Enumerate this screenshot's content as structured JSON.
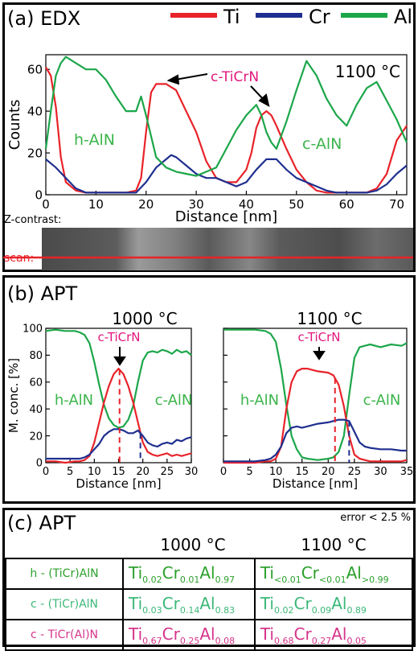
{
  "panel_a": {
    "title": "(a) EDX",
    "temperature": "1100 °C",
    "zcontrast_label": "Z-contrast:",
    "scan_label": "scan:",
    "annotation": "c-TiCrN",
    "region_left": "h-AlN",
    "region_right": "c-AlN"
  },
  "panel_b": {
    "title": "(b) APT",
    "left": {
      "temperature": "1000 °C",
      "annotation": "c-TiCrN",
      "region_left": "h-AlN",
      "region_right": "c-AlN"
    },
    "right": {
      "temperature": "1100 °C",
      "annotation": "c-TiCrN",
      "region_left": "h-AlN",
      "region_right": "c-AlN"
    }
  },
  "panel_c": {
    "title": "(c) APT",
    "error_note": "error < 2.5 %",
    "col_1000": "1000 °C",
    "col_1100": "1100 °C",
    "rows": [
      {
        "label": "h - (TiCr)AlN",
        "color": "#2ca02c",
        "c1000": [
          [
            "Ti",
            "0.02"
          ],
          [
            "Cr",
            "0.01"
          ],
          [
            "Al",
            "0.97"
          ]
        ],
        "c1100": [
          [
            "Ti",
            "<0.01"
          ],
          [
            "Cr",
            "<0.01"
          ],
          [
            "Al",
            ">0.99"
          ]
        ]
      },
      {
        "label": "c - (TiCr)AlN",
        "color": "#3cb878",
        "c1000": [
          [
            "Ti",
            "0.03"
          ],
          [
            "Cr",
            "0.14"
          ],
          [
            "Al",
            "0.83"
          ]
        ],
        "c1100": [
          [
            "Ti",
            "0.02"
          ],
          [
            "Cr",
            "0.09"
          ],
          [
            "Al",
            "0.89"
          ]
        ]
      },
      {
        "label": "c - TiCr(Al)N",
        "color": "#d6338a",
        "c1000": [
          [
            "Ti",
            "0.67"
          ],
          [
            "Cr",
            "0.25"
          ],
          [
            "Al",
            "0.08"
          ]
        ],
        "c1100": [
          [
            "Ti",
            "0.68"
          ],
          [
            "Cr",
            "0.27"
          ],
          [
            "Al",
            "0.05"
          ]
        ]
      }
    ]
  },
  "colors": {
    "Ti": "#e8232a",
    "Cr": "#1f2f8f",
    "Al": "#1ca64a",
    "annotation": "#e0177d",
    "region": "#3cb44b"
  },
  "chart_data": [
    {
      "type": "line",
      "title": "(a) EDX",
      "xlabel": "Distance [nm]",
      "ylabel": "Counts",
      "xlim": [
        0,
        72
      ],
      "ylim": [
        0,
        67
      ],
      "xticks": [
        0,
        10,
        20,
        30,
        40,
        50,
        60,
        70
      ],
      "yticks": [
        0,
        20,
        40,
        60
      ],
      "legend": "top-right",
      "series": [
        {
          "name": "Ti",
          "color": "#e8232a",
          "x": [
            0,
            1,
            2,
            3,
            4,
            6,
            8,
            10,
            12,
            14,
            16,
            18,
            19,
            20,
            21,
            22,
            24,
            26,
            28,
            30,
            32,
            34,
            36,
            38,
            40,
            41,
            42,
            43,
            44,
            45,
            46,
            48,
            50,
            52,
            54,
            56,
            58,
            60,
            62,
            64,
            66,
            68,
            70,
            72
          ],
          "y": [
            61,
            57,
            42,
            18,
            6,
            2,
            1,
            1,
            1,
            1,
            1,
            2,
            8,
            30,
            49,
            53,
            53,
            50,
            40,
            30,
            16,
            8,
            6,
            6,
            12,
            20,
            32,
            38,
            40,
            38,
            33,
            22,
            12,
            6,
            2,
            1,
            1,
            1,
            1,
            1,
            3,
            10,
            26,
            33
          ]
        },
        {
          "name": "Cr",
          "color": "#1f2f8f",
          "x": [
            0,
            2,
            4,
            6,
            8,
            10,
            12,
            14,
            16,
            18,
            20,
            22,
            24,
            25,
            26,
            28,
            30,
            32,
            34,
            36,
            38,
            40,
            42,
            44,
            46,
            48,
            50,
            52,
            54,
            56,
            58,
            60,
            62,
            64,
            66,
            68,
            70,
            72
          ],
          "y": [
            17,
            13,
            8,
            3,
            1,
            1,
            1,
            1,
            1,
            1,
            6,
            13,
            17,
            19,
            18,
            14,
            10,
            8,
            8,
            6,
            4,
            6,
            12,
            17,
            17,
            12,
            8,
            6,
            4,
            2,
            1,
            1,
            1,
            1,
            2,
            5,
            10,
            14
          ]
        },
        {
          "name": "Al",
          "color": "#1ca64a",
          "x": [
            0,
            1,
            2,
            3,
            4,
            6,
            8,
            10,
            12,
            14,
            16,
            18,
            19,
            20,
            22,
            24,
            26,
            28,
            30,
            32,
            34,
            36,
            38,
            40,
            42,
            43,
            44,
            45,
            46,
            48,
            50,
            52,
            54,
            56,
            58,
            60,
            62,
            64,
            66,
            68,
            70,
            72
          ],
          "y": [
            22,
            40,
            57,
            63,
            66,
            63,
            60,
            60,
            55,
            47,
            40,
            40,
            47,
            38,
            18,
            13,
            11,
            10,
            9,
            11,
            13,
            22,
            31,
            38,
            43,
            38,
            30,
            25,
            22,
            35,
            50,
            64,
            57,
            46,
            38,
            33,
            43,
            51,
            54,
            45,
            36,
            25
          ]
        }
      ]
    },
    {
      "type": "line",
      "title": "1000 °C",
      "xlabel": "Distance [nm]",
      "ylabel": "M. conc. [%]",
      "xlim": [
        0,
        30
      ],
      "ylim": [
        0,
        100
      ],
      "xticks": [
        0,
        5,
        10,
        15,
        20,
        25,
        30
      ],
      "yticks": [
        0,
        20,
        40,
        60,
        80,
        100
      ],
      "series": [
        {
          "name": "Al",
          "color": "#1ca64a",
          "x": [
            0,
            2,
            4,
            6,
            7,
            8,
            9,
            10,
            11,
            12,
            13,
            14,
            15,
            16,
            17,
            18,
            19,
            20,
            21,
            22,
            23,
            24,
            25,
            26,
            27,
            28,
            29,
            30
          ],
          "y": [
            98,
            99,
            98,
            98,
            97,
            95,
            89,
            75,
            58,
            43,
            33,
            28,
            26,
            27,
            32,
            42,
            60,
            76,
            82,
            83,
            82,
            84,
            83,
            81,
            84,
            82,
            83,
            80
          ]
        },
        {
          "name": "Ti",
          "color": "#e8232a",
          "x": [
            0,
            2,
            4,
            6,
            7,
            8,
            9,
            10,
            11,
            12,
            13,
            14,
            15,
            16,
            17,
            18,
            19,
            20,
            21,
            22,
            23,
            24,
            25,
            26,
            27,
            28,
            29,
            30
          ],
          "y": [
            1,
            1,
            0,
            1,
            1,
            2,
            5,
            15,
            30,
            45,
            57,
            66,
            70,
            66,
            57,
            45,
            30,
            15,
            8,
            6,
            5,
            6,
            7,
            5,
            6,
            5,
            6,
            7
          ]
        },
        {
          "name": "Cr",
          "color": "#1f2f8f",
          "x": [
            0,
            2,
            4,
            6,
            7,
            8,
            9,
            10,
            11,
            12,
            13,
            14,
            15,
            16,
            17,
            18,
            19,
            20,
            21,
            22,
            23,
            24,
            25,
            26,
            27,
            28,
            29,
            30
          ],
          "y": [
            3,
            3,
            3,
            3,
            3,
            4,
            6,
            10,
            14,
            20,
            23,
            25,
            25,
            24,
            22,
            22,
            24,
            20,
            15,
            13,
            12,
            14,
            15,
            14,
            17,
            16,
            18,
            19
          ]
        }
      ],
      "markers": [
        {
          "element": "Ti",
          "x": 15.2,
          "style": "dashed"
        },
        {
          "element": "Cr",
          "x": 19.5,
          "style": "dashed"
        }
      ]
    },
    {
      "type": "line",
      "title": "1100 °C",
      "xlabel": "Distance [nm]",
      "xlim": [
        0,
        35
      ],
      "ylim": [
        0,
        100
      ],
      "xticks": [
        0,
        5,
        10,
        15,
        20,
        25,
        30,
        35
      ],
      "yticks": [
        0,
        20,
        40,
        60,
        80,
        100
      ],
      "series": [
        {
          "name": "Al",
          "color": "#1ca64a",
          "x": [
            0,
            2,
            4,
            6,
            8,
            9,
            10,
            11,
            12,
            13,
            14,
            15,
            16,
            18,
            20,
            21,
            22,
            23,
            24,
            25,
            26,
            27,
            28,
            30,
            32,
            34,
            35
          ],
          "y": [
            99,
            99,
            99,
            99,
            98,
            96,
            90,
            70,
            43,
            20,
            10,
            4,
            3,
            2,
            3,
            4,
            8,
            20,
            50,
            78,
            86,
            87,
            88,
            86,
            88,
            87,
            89
          ]
        },
        {
          "name": "Ti",
          "color": "#e8232a",
          "x": [
            0,
            2,
            4,
            6,
            8,
            9,
            10,
            11,
            12,
            13,
            14,
            15,
            16,
            18,
            20,
            21,
            22,
            23,
            24,
            25,
            26,
            27,
            28,
            30,
            32,
            34,
            35
          ],
          "y": [
            0,
            0,
            0,
            0,
            1,
            1,
            3,
            12,
            40,
            60,
            68,
            70,
            70,
            68,
            67,
            65,
            58,
            42,
            20,
            6,
            3,
            2,
            1,
            1,
            1,
            1,
            2
          ]
        },
        {
          "name": "Cr",
          "color": "#1f2f8f",
          "x": [
            0,
            2,
            4,
            6,
            8,
            9,
            10,
            11,
            12,
            13,
            14,
            15,
            16,
            18,
            20,
            21,
            22,
            23,
            24,
            25,
            26,
            27,
            28,
            30,
            32,
            34,
            35
          ],
          "y": [
            1,
            1,
            1,
            1,
            2,
            3,
            6,
            12,
            22,
            26,
            27,
            26,
            27,
            29,
            30,
            31,
            32,
            32,
            31,
            23,
            15,
            12,
            11,
            10,
            10,
            9,
            9
          ]
        }
      ],
      "markers": [
        {
          "element": "Ti",
          "x": 21.3,
          "style": "dashed"
        },
        {
          "element": "Cr",
          "x": 24.0,
          "style": "dashed"
        }
      ]
    }
  ]
}
